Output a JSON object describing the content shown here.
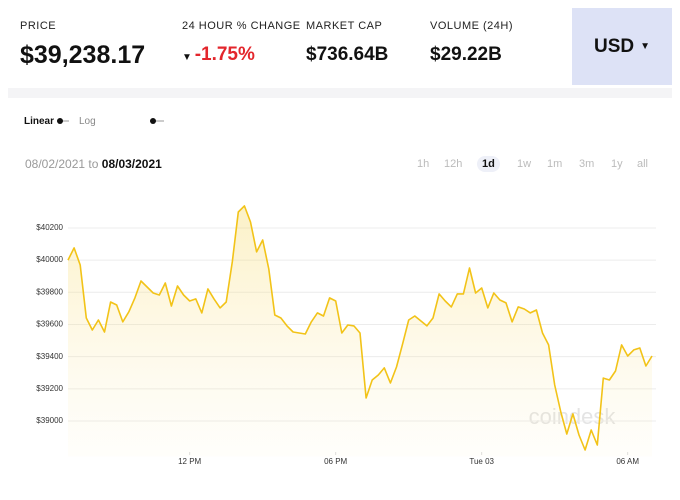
{
  "header": {
    "stats": [
      {
        "label": "PRICE",
        "value": "$39,238.17"
      },
      {
        "label": "24 HOUR % CHANGE",
        "value": "-1.75%"
      },
      {
        "label": "MARKET CAP",
        "value": "$736.64B"
      },
      {
        "label": "VOLUME (24H)",
        "value": "$29.22B"
      }
    ],
    "currency": "USD"
  },
  "scale_toggle": {
    "linear": "Linear",
    "log": "Log"
  },
  "date_range": {
    "from": "08/02/2021",
    "sep": "to",
    "to": "08/03/2021"
  },
  "timeframes": [
    {
      "label": "1h"
    },
    {
      "label": "12h"
    },
    {
      "label": "1d",
      "active": true
    },
    {
      "label": "1w"
    },
    {
      "label": "1m"
    },
    {
      "label": "3m"
    },
    {
      "label": "1y"
    },
    {
      "label": "all"
    }
  ],
  "watermark": "coindesk",
  "chart_data": {
    "type": "line",
    "area": true,
    "color": "#f2c318",
    "grid": true,
    "x": [
      7,
      7.25,
      7.5,
      7.75,
      8,
      8.25,
      8.5,
      8.75,
      9,
      9.25,
      9.5,
      9.75,
      10,
      10.25,
      10.5,
      10.75,
      11,
      11.25,
      11.5,
      11.75,
      12,
      12.25,
      12.5,
      12.75,
      13,
      13.25,
      13.5,
      13.75,
      14,
      14.25,
      14.5,
      14.75,
      15,
      15.25,
      15.5,
      15.75,
      16,
      16.25,
      16.5,
      16.75,
      17,
      17.25,
      17.5,
      17.75,
      18,
      18.25,
      18.5,
      18.75,
      19,
      19.25,
      19.5,
      19.75,
      20,
      20.25,
      20.5,
      20.75,
      21,
      21.25,
      21.5,
      21.75,
      22,
      22.25,
      22.5,
      22.75,
      23,
      23.25,
      23.5,
      23.75,
      24,
      24.25,
      24.5,
      24.75,
      25,
      25.25,
      25.5,
      25.75,
      26,
      26.25,
      26.5,
      26.75,
      27,
      27.25,
      27.5,
      27.75,
      28,
      28.25,
      28.5,
      28.75,
      29,
      29.25,
      29.5,
      29.75,
      30,
      30.25,
      30.5,
      30.75,
      31
    ],
    "values": [
      40000,
      40076,
      39970,
      39640,
      39566,
      39628,
      39553,
      39740,
      39721,
      39616,
      39678,
      39765,
      39870,
      39833,
      39796,
      39783,
      39858,
      39715,
      39839,
      39783,
      39746,
      39759,
      39672,
      39821,
      39759,
      39703,
      39740,
      39989,
      40299,
      40337,
      40237,
      40051,
      40125,
      39945,
      39659,
      39640,
      39591,
      39553,
      39547,
      39541,
      39616,
      39672,
      39653,
      39765,
      39746,
      39547,
      39597,
      39591,
      39547,
      39143,
      39255,
      39286,
      39330,
      39236,
      39336,
      39479,
      39628,
      39653,
      39622,
      39591,
      39640,
      39790,
      39746,
      39709,
      39790,
      39790,
      39951,
      39796,
      39827,
      39703,
      39796,
      39752,
      39734,
      39616,
      39709,
      39696,
      39672,
      39690,
      39547,
      39473,
      39224,
      39056,
      38919,
      39044,
      38913,
      38820,
      38944,
      38851,
      39267,
      39255,
      39311,
      39473,
      39404,
      39442,
      39454,
      39342,
      39404
    ],
    "xlim": [
      7,
      31
    ],
    "xticks": [
      {
        "value": 12,
        "label": "12 PM"
      },
      {
        "value": 18,
        "label": "06 PM"
      },
      {
        "value": 24,
        "label": "Tue 03"
      },
      {
        "value": 30,
        "label": "06 AM"
      }
    ],
    "ylim": [
      38780,
      40380
    ],
    "yticks": [
      {
        "value": 39000,
        "label": "$39000"
      },
      {
        "value": 39200,
        "label": "$39200"
      },
      {
        "value": 39400,
        "label": "$39400"
      },
      {
        "value": 39600,
        "label": "$39600"
      },
      {
        "value": 39800,
        "label": "$39800"
      },
      {
        "value": 40000,
        "label": "$40000"
      },
      {
        "value": 40200,
        "label": "$40200"
      }
    ]
  }
}
